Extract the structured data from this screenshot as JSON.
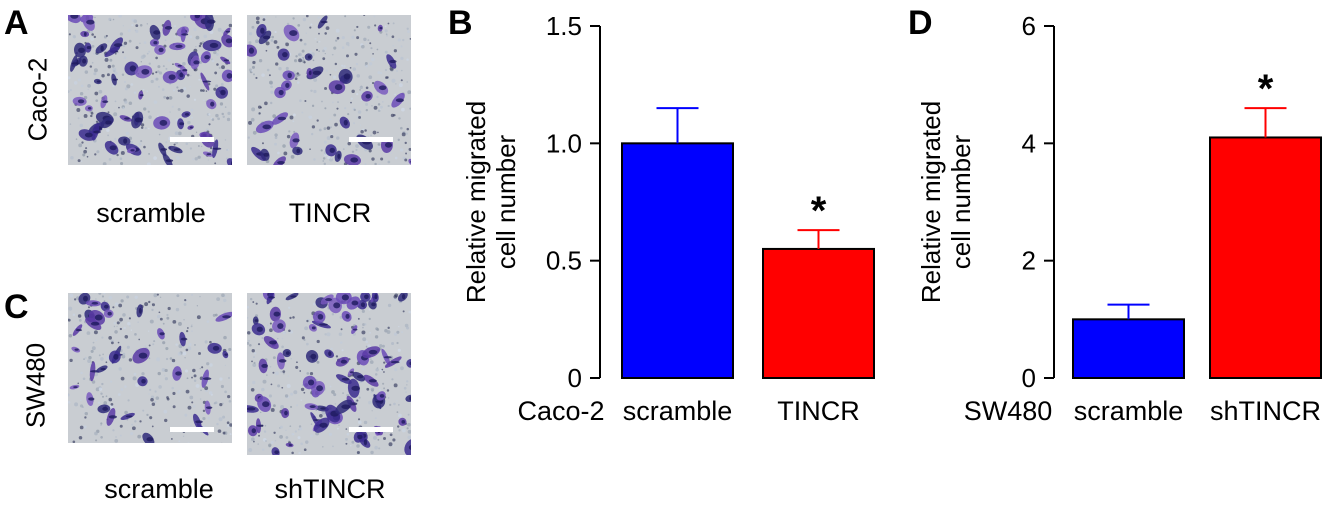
{
  "panels": {
    "a": {
      "letter": "A",
      "row_label": "Caco-2",
      "images": [
        {
          "label": "scramble",
          "image": "crystal-violet-stained migrated cells (dense)"
        },
        {
          "label": "TINCR",
          "image": "crystal-violet-stained migrated cells (sparse)"
        }
      ]
    },
    "c": {
      "letter": "C",
      "row_label": "SW480",
      "images": [
        {
          "label": "scramble",
          "image": "crystal-violet-stained migrated cells (sparse)"
        },
        {
          "label": "shTINCR",
          "image": "crystal-violet-stained migrated cells (dense)"
        }
      ]
    },
    "b": {
      "letter": "B"
    },
    "d": {
      "letter": "D"
    }
  },
  "colors": {
    "scramble": "#0000ff",
    "treatment": "#ff0000",
    "stain": "#5a3aa6",
    "background": "#c9cdd2"
  },
  "chart_data": [
    {
      "id": "B",
      "type": "bar",
      "ylabel": [
        "Relative migrated",
        "cell number"
      ],
      "group_label": "Caco-2",
      "categories": [
        "scramble",
        "TINCR"
      ],
      "values": [
        1.0,
        0.55
      ],
      "errors": [
        0.15,
        0.08
      ],
      "colors": [
        "#0000ff",
        "#ff0000"
      ],
      "significance": [
        "",
        "*"
      ],
      "ylim": [
        0,
        1.5
      ],
      "yticks": [
        0,
        0.5,
        1.0,
        1.5
      ],
      "ytick_labels": [
        "0",
        "0.5",
        "1.0",
        "1.5"
      ],
      "grid": false,
      "legend": "none"
    },
    {
      "id": "D",
      "type": "bar",
      "ylabel": [
        "Relative migrated",
        "cell number"
      ],
      "group_label": "SW480",
      "categories": [
        "scramble",
        "shTINCR"
      ],
      "values": [
        1.0,
        4.1
      ],
      "errors": [
        0.25,
        0.5
      ],
      "colors": [
        "#0000ff",
        "#ff0000"
      ],
      "significance": [
        "",
        "*"
      ],
      "ylim": [
        0,
        6
      ],
      "yticks": [
        0,
        2,
        4,
        6
      ],
      "ytick_labels": [
        "0",
        "2",
        "4",
        "6"
      ],
      "grid": false,
      "legend": "none"
    }
  ]
}
